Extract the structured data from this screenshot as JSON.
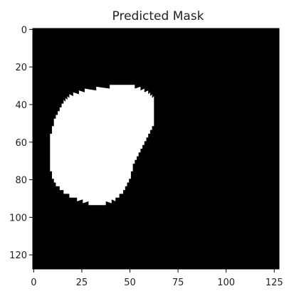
{
  "chart_data": {
    "type": "heatmap",
    "title": "Predicted Mask",
    "xlabel": "",
    "ylabel": "",
    "xlim": [
      -0.5,
      127.5
    ],
    "ylim": [
      127.5,
      -0.5
    ],
    "x_ticks": [
      0,
      25,
      50,
      75,
      100,
      125
    ],
    "y_ticks": [
      0,
      20,
      40,
      60,
      80,
      100,
      120
    ],
    "image_size": [
      128,
      128
    ],
    "colormap": {
      "0": "#000000",
      "1": "#ffffff"
    },
    "background_value": 0,
    "mask_value": 1,
    "mask_region": {
      "description_units": "pixel row/column indices",
      "row_extents": [
        {
          "row": 30,
          "col_start": 40,
          "col_end": 52
        },
        {
          "row": 31,
          "col_start": 33,
          "col_end": 55
        },
        {
          "row": 32,
          "col_start": 27,
          "col_end": 57
        },
        {
          "row": 33,
          "col_start": 24,
          "col_end": 59
        },
        {
          "row": 34,
          "col_start": 21,
          "col_end": 60
        },
        {
          "row": 35,
          "col_start": 19,
          "col_end": 61
        },
        {
          "row": 36,
          "col_start": 18,
          "col_end": 62
        },
        {
          "row": 37,
          "col_start": 17,
          "col_end": 62
        },
        {
          "row": 38,
          "col_start": 16,
          "col_end": 62
        },
        {
          "row": 40,
          "col_start": 15,
          "col_end": 62
        },
        {
          "row": 42,
          "col_start": 14,
          "col_end": 62
        },
        {
          "row": 44,
          "col_start": 13,
          "col_end": 62
        },
        {
          "row": 46,
          "col_start": 12,
          "col_end": 62
        },
        {
          "row": 48,
          "col_start": 11,
          "col_end": 62
        },
        {
          "row": 50,
          "col_start": 11,
          "col_end": 62
        },
        {
          "row": 52,
          "col_start": 10,
          "col_end": 61
        },
        {
          "row": 54,
          "col_start": 10,
          "col_end": 60
        },
        {
          "row": 56,
          "col_start": 9,
          "col_end": 59
        },
        {
          "row": 58,
          "col_start": 9,
          "col_end": 58
        },
        {
          "row": 60,
          "col_start": 9,
          "col_end": 57
        },
        {
          "row": 62,
          "col_start": 9,
          "col_end": 56
        },
        {
          "row": 64,
          "col_start": 9,
          "col_end": 55
        },
        {
          "row": 66,
          "col_start": 9,
          "col_end": 54
        },
        {
          "row": 68,
          "col_start": 9,
          "col_end": 53
        },
        {
          "row": 70,
          "col_start": 9,
          "col_end": 52
        },
        {
          "row": 72,
          "col_start": 9,
          "col_end": 51
        },
        {
          "row": 74,
          "col_start": 9,
          "col_end": 51
        },
        {
          "row": 76,
          "col_start": 10,
          "col_end": 50
        },
        {
          "row": 78,
          "col_start": 10,
          "col_end": 50
        },
        {
          "row": 80,
          "col_start": 11,
          "col_end": 49
        },
        {
          "row": 82,
          "col_start": 12,
          "col_end": 48
        },
        {
          "row": 84,
          "col_start": 14,
          "col_end": 47
        },
        {
          "row": 86,
          "col_start": 16,
          "col_end": 46
        },
        {
          "row": 88,
          "col_start": 19,
          "col_end": 44
        },
        {
          "row": 90,
          "col_start": 23,
          "col_end": 42
        },
        {
          "row": 91,
          "col_start": 26,
          "col_end": 40
        },
        {
          "row": 92,
          "col_start": 29,
          "col_end": 37
        }
      ]
    }
  }
}
